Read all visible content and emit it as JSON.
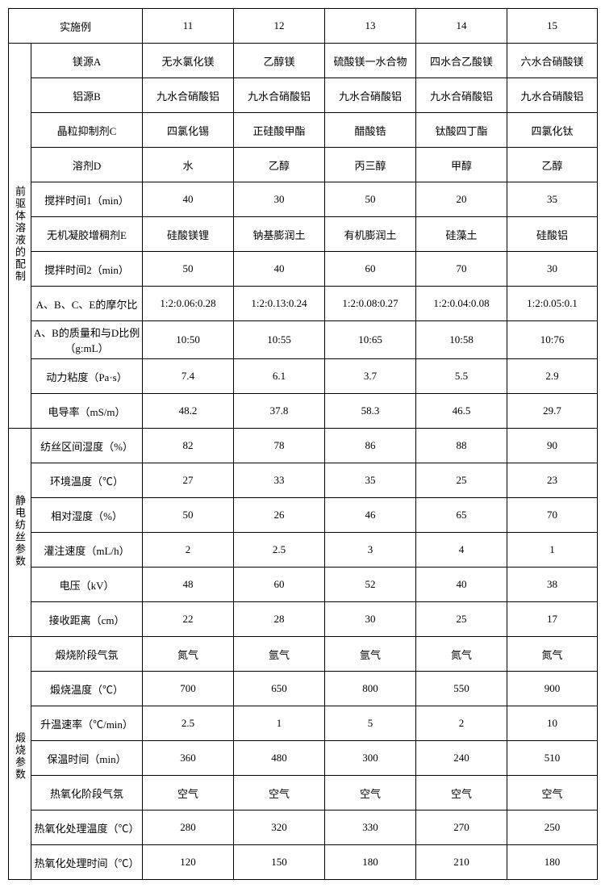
{
  "header": {
    "label": "实施例",
    "cols": [
      "11",
      "12",
      "13",
      "14",
      "15"
    ]
  },
  "sections": [
    {
      "title": "前驱体溶液的配制",
      "rows": [
        {
          "label": "镁源A",
          "cells": [
            "无水氯化镁",
            "乙醇镁",
            "硫酸镁一水合物",
            "四水合乙酸镁",
            "六水合硝酸镁"
          ]
        },
        {
          "label": "铝源B",
          "cells": [
            "九水合硝酸铝",
            "九水合硝酸铝",
            "九水合硝酸铝",
            "九水合硝酸铝",
            "九水合硝酸铝"
          ]
        },
        {
          "label": "晶粒抑制剂C",
          "cells": [
            "四氯化锡",
            "正硅酸甲酯",
            "醋酸锆",
            "钛酸四丁酯",
            "四氯化钛"
          ]
        },
        {
          "label": "溶剂D",
          "cells": [
            "水",
            "乙醇",
            "丙三醇",
            "甲醇",
            "乙醇"
          ]
        },
        {
          "label": "搅拌时间1（min）",
          "cells": [
            "40",
            "30",
            "50",
            "20",
            "35"
          ]
        },
        {
          "label": "无机凝胶增稠剂E",
          "cells": [
            "硅酸镁锂",
            "钠基膨润土",
            "有机膨润土",
            "硅藻土",
            "硅酸铝"
          ]
        },
        {
          "label": "搅拌时间2（min）",
          "cells": [
            "50",
            "40",
            "60",
            "70",
            "30"
          ]
        },
        {
          "label": "A、B、C、E的摩尔比",
          "cells": [
            "1:2:0.06:0.28",
            "1:2:0.13:0.24",
            "1:2:0.08:0.27",
            "1:2:0.04:0.08",
            "1:2:0.05:0.1"
          ]
        },
        {
          "label": "A、B的质量和与D比例（g:mL）",
          "cells": [
            "10:50",
            "10:55",
            "10:65",
            "10:58",
            "10:76"
          ]
        },
        {
          "label": "动力粘度（Pa·s）",
          "cells": [
            "7.4",
            "6.1",
            "3.7",
            "5.5",
            "2.9"
          ]
        },
        {
          "label": "电导率（mS/m）",
          "cells": [
            "48.2",
            "37.8",
            "58.3",
            "46.5",
            "29.7"
          ]
        }
      ]
    },
    {
      "title": "静电纺丝参数",
      "rows": [
        {
          "label": "纺丝区间湿度（%）",
          "cells": [
            "82",
            "78",
            "86",
            "88",
            "90"
          ]
        },
        {
          "label": "环境温度（℃）",
          "cells": [
            "27",
            "33",
            "35",
            "25",
            "23"
          ]
        },
        {
          "label": "相对湿度（%）",
          "cells": [
            "50",
            "26",
            "46",
            "65",
            "70"
          ]
        },
        {
          "label": "灌注速度（mL/h）",
          "cells": [
            "2",
            "2.5",
            "3",
            "4",
            "1"
          ]
        },
        {
          "label": "电压（kV）",
          "cells": [
            "48",
            "60",
            "52",
            "40",
            "38"
          ]
        },
        {
          "label": "接收距离（cm）",
          "cells": [
            "22",
            "28",
            "30",
            "25",
            "17"
          ]
        }
      ]
    },
    {
      "title": "煅烧参数",
      "rows": [
        {
          "label": "煅烧阶段气氛",
          "cells": [
            "氮气",
            "氩气",
            "氩气",
            "氮气",
            "氮气"
          ]
        },
        {
          "label": "煅烧温度（℃）",
          "cells": [
            "700",
            "650",
            "800",
            "550",
            "900"
          ]
        },
        {
          "label": "升温速率（℃/min）",
          "cells": [
            "2.5",
            "1",
            "5",
            "2",
            "10"
          ]
        },
        {
          "label": "保温时间（min）",
          "cells": [
            "360",
            "480",
            "300",
            "240",
            "510"
          ]
        },
        {
          "label": "热氧化阶段气氛",
          "cells": [
            "空气",
            "空气",
            "空气",
            "空气",
            "空气"
          ]
        },
        {
          "label": "热氧化处理温度（℃）",
          "cells": [
            "280",
            "320",
            "330",
            "270",
            "250"
          ]
        },
        {
          "label": "热氧化处理时间（℃）",
          "cells": [
            "120",
            "150",
            "180",
            "210",
            "180"
          ]
        }
      ]
    }
  ]
}
